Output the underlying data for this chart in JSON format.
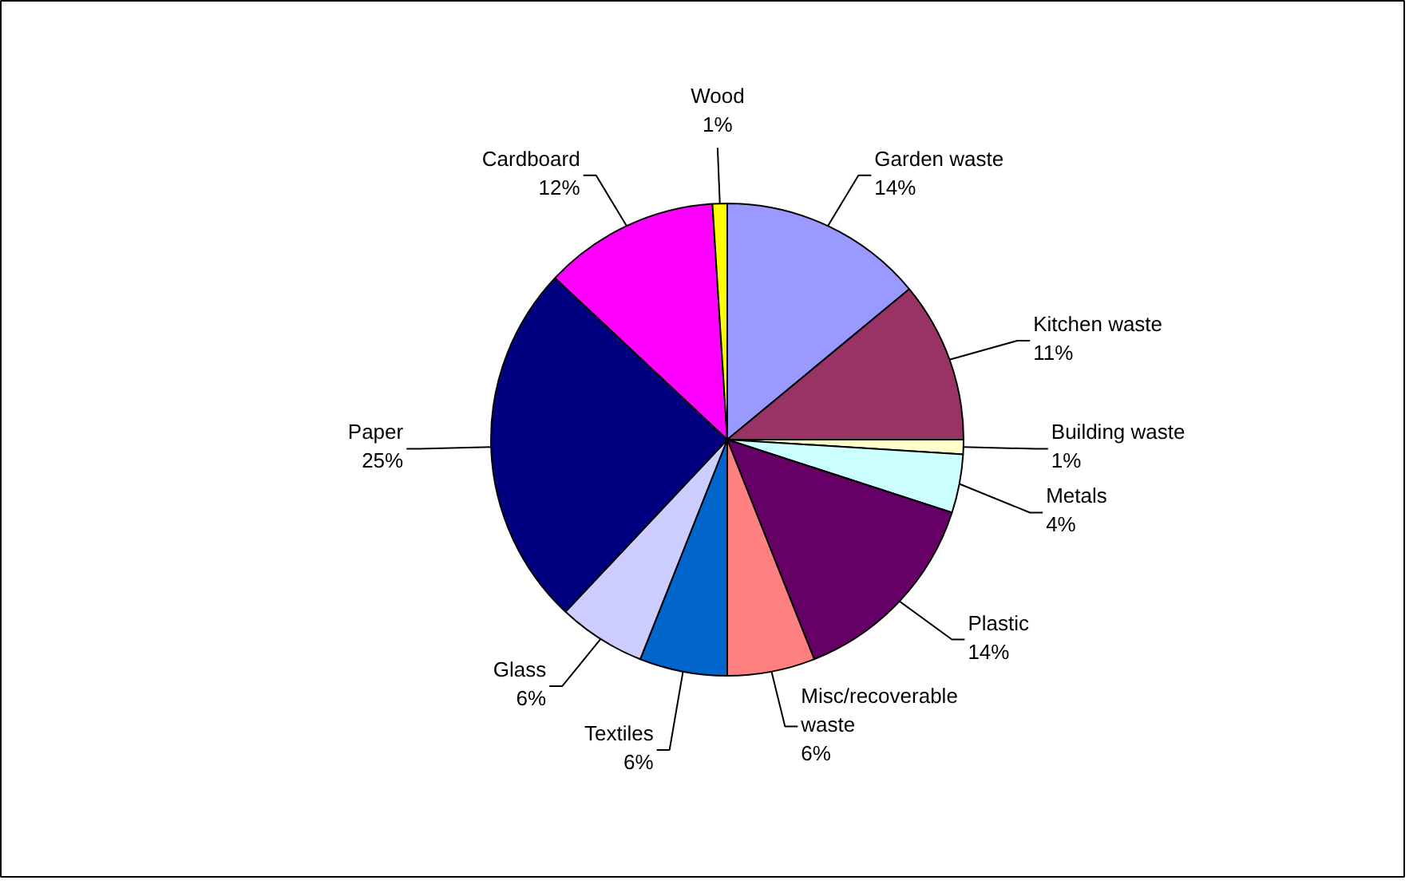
{
  "chart_data": {
    "type": "pie",
    "categories": [
      "Garden waste",
      "Kitchen waste",
      "Building waste",
      "Metals",
      "Plastic",
      "Misc/recoverable waste",
      "Textiles",
      "Glass",
      "Paper",
      "Cardboard",
      "Wood"
    ],
    "values": [
      14,
      11,
      1,
      4,
      14,
      6,
      6,
      6,
      25,
      12,
      1
    ],
    "colors": [
      "#9999ff",
      "#993366",
      "#ffffcc",
      "#ccffff",
      "#660066",
      "#ff8080",
      "#0066cc",
      "#ccccff",
      "#000080",
      "#ff00ff",
      "#ffff00"
    ],
    "value_labels": [
      "14%",
      "11%",
      "1%",
      "4%",
      "14%",
      "6%",
      "6%",
      "6%",
      "25%",
      "12%",
      "1%"
    ]
  }
}
